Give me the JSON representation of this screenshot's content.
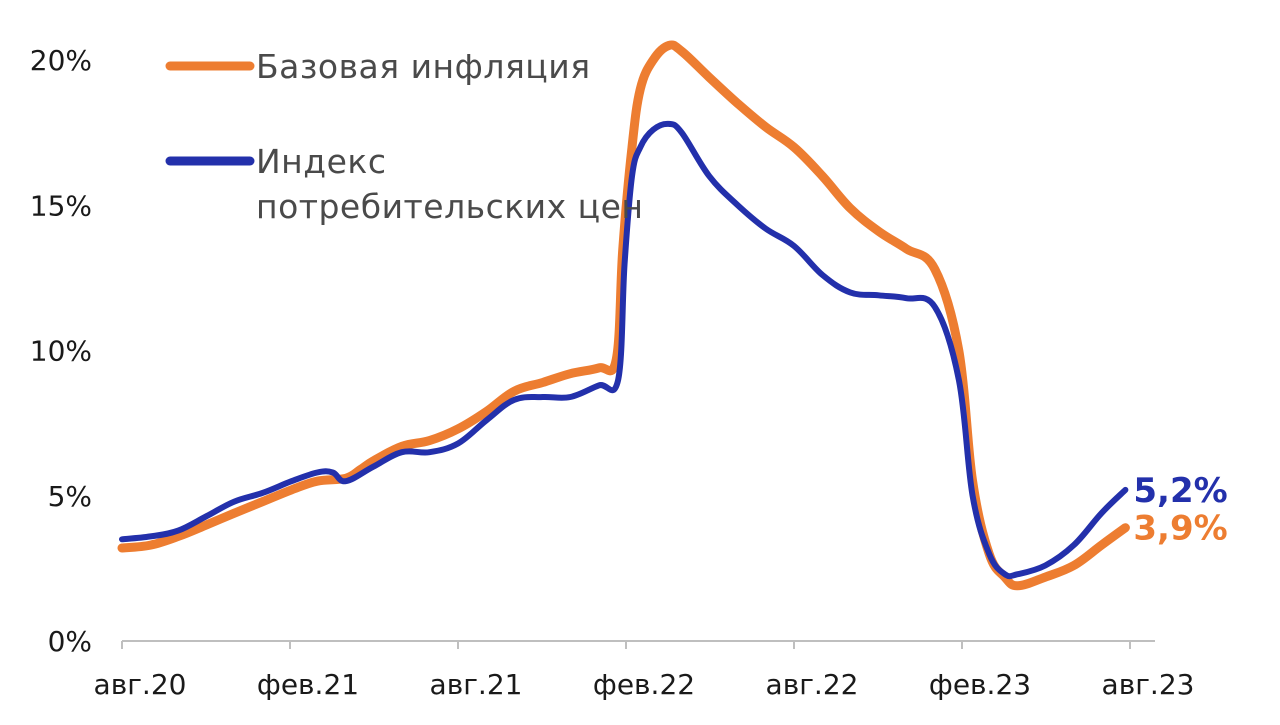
{
  "chart_data": {
    "type": "line",
    "title": "",
    "xlabel": "",
    "ylabel": "",
    "x_tick_labels": [
      "авг.20",
      "фев.21",
      "авг.21",
      "фев.22",
      "авг.22",
      "фев.23",
      "авг.23"
    ],
    "y_tick_labels": [
      "0%",
      "5%",
      "10%",
      "15%",
      "20%"
    ],
    "ylim": [
      0,
      20
    ],
    "grid": false,
    "legend_position": "top-left",
    "series": [
      {
        "name": "Базовая инфляция",
        "color": "#ED7D31",
        "end_label": "3,9%",
        "x": [
          "2020-08-15",
          "2020-09-15",
          "2020-10-15",
          "2020-11-15",
          "2020-12-15",
          "2021-01-15",
          "2021-02-15",
          "2021-03-15",
          "2021-04-15",
          "2021-05-01",
          "2021-05-15",
          "2021-06-15",
          "2021-07-15",
          "2021-08-15",
          "2021-09-15",
          "2021-10-15",
          "2021-11-15",
          "2021-12-15",
          "2022-01-15",
          "2022-02-03",
          "2022-02-10",
          "2022-02-20",
          "2022-03-01",
          "2022-03-15",
          "2022-04-01",
          "2022-04-15",
          "2022-05-15",
          "2022-06-15",
          "2022-07-15",
          "2022-08-15",
          "2022-09-15",
          "2022-10-15",
          "2022-11-15",
          "2022-12-15",
          "2023-01-15",
          "2023-02-10",
          "2023-02-25",
          "2023-03-15",
          "2023-04-01",
          "2023-04-15",
          "2023-05-15",
          "2023-06-15",
          "2023-07-15",
          "2023-08-10"
        ],
        "y": [
          3.2,
          3.3,
          3.6,
          4.0,
          4.4,
          4.8,
          5.2,
          5.5,
          5.6,
          5.9,
          6.2,
          6.7,
          6.9,
          7.3,
          7.9,
          8.6,
          8.9,
          9.2,
          9.4,
          9.7,
          13.5,
          17.0,
          19.0,
          20.0,
          20.5,
          20.3,
          19.4,
          18.5,
          17.7,
          17.0,
          16.0,
          14.9,
          14.1,
          13.5,
          12.8,
          10.0,
          5.5,
          3.0,
          2.2,
          1.9,
          2.2,
          2.6,
          3.3,
          3.9
        ]
      },
      {
        "name": "Индекс потребительских цен",
        "color": "#2330AB",
        "end_label": "5,2%",
        "x": [
          "2020-08-15",
          "2020-09-15",
          "2020-10-15",
          "2020-11-15",
          "2020-12-15",
          "2021-01-15",
          "2021-02-15",
          "2021-03-15",
          "2021-04-01",
          "2021-04-15",
          "2021-05-15",
          "2021-06-15",
          "2021-07-15",
          "2021-08-15",
          "2021-09-15",
          "2021-10-15",
          "2021-11-15",
          "2021-12-15",
          "2022-01-15",
          "2022-02-05",
          "2022-02-12",
          "2022-02-20",
          "2022-03-01",
          "2022-03-15",
          "2022-04-01",
          "2022-04-15",
          "2022-05-15",
          "2022-06-15",
          "2022-07-15",
          "2022-08-15",
          "2022-09-15",
          "2022-10-15",
          "2022-11-15",
          "2022-12-15",
          "2023-01-15",
          "2023-02-10",
          "2023-02-25",
          "2023-03-15",
          "2023-04-01",
          "2023-04-15",
          "2023-05-15",
          "2023-06-15",
          "2023-07-15",
          "2023-08-10"
        ],
        "y": [
          3.5,
          3.6,
          3.8,
          4.3,
          4.8,
          5.1,
          5.5,
          5.8,
          5.8,
          5.5,
          6.0,
          6.5,
          6.5,
          6.8,
          7.6,
          8.3,
          8.4,
          8.4,
          8.8,
          9.0,
          13.0,
          16.0,
          17.0,
          17.6,
          17.8,
          17.5,
          16.0,
          15.0,
          14.2,
          13.6,
          12.6,
          12.0,
          11.9,
          11.8,
          11.5,
          9.0,
          5.0,
          3.0,
          2.3,
          2.3,
          2.6,
          3.3,
          4.4,
          5.2
        ]
      }
    ]
  }
}
